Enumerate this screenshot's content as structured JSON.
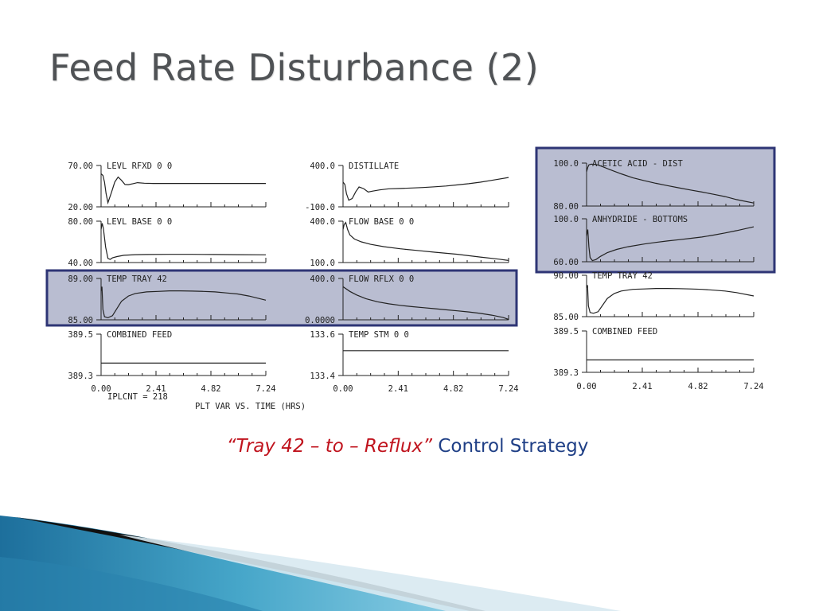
{
  "slide": {
    "title": "Feed Rate Disturbance (2)",
    "caption_emph": "“Tray 42 – to – Reflux”",
    "caption_rest": " Control Strategy"
  },
  "colors": {
    "highlight_fill": "#b9bdd1",
    "highlight_border": "#2e3575",
    "curve": "#222222",
    "title": "#4f5255",
    "caption_blue": "#1f3f86",
    "caption_red": "#c0131d"
  },
  "chart_data": [
    {
      "type": "line",
      "group": "left",
      "x_ticks": [
        "0.00",
        "2.41",
        "4.82",
        "7.24"
      ],
      "xlim": [
        0,
        7.24
      ],
      "footer_left": "IPLCNT =  218",
      "xlabel": "PLT VAR VS. TIME (HRS)",
      "panels": [
        {
          "id": "l1",
          "label": "LEVL RFXD   0   0",
          "ymax_label": "70.00",
          "ymin_label": "20.00",
          "ylim": [
            20,
            70
          ],
          "highlighted": false,
          "x": [
            0,
            0.08,
            0.15,
            0.22,
            0.3,
            0.45,
            0.6,
            0.75,
            0.9,
            1.05,
            1.2,
            1.4,
            1.6,
            1.9,
            2.3,
            3,
            4,
            5,
            6,
            7.24
          ],
          "y": [
            60,
            58,
            50,
            36,
            25,
            37,
            50,
            56,
            52,
            47,
            46.8,
            48,
            49.2,
            48.6,
            48.3,
            48.3,
            48.3,
            48.3,
            48.3,
            48.3
          ]
        },
        {
          "id": "l2",
          "label": "LEVL BASE   0   0",
          "ymax_label": "80.00",
          "ymin_label": "40.00",
          "ylim": [
            40,
            80
          ],
          "highlighted": false,
          "x": [
            0,
            0.05,
            0.1,
            0.15,
            0.2,
            0.3,
            0.4,
            0.5,
            0.7,
            1,
            1.5,
            2,
            3,
            4,
            5,
            6,
            7.24
          ],
          "y": [
            72,
            78,
            73,
            64,
            55,
            44,
            43,
            44.5,
            45.8,
            47,
            47.6,
            47.8,
            47.9,
            47.9,
            47.8,
            47.6,
            47.5
          ]
        },
        {
          "id": "l3",
          "label": "TEMP TRAY 42",
          "ymax_label": "89.00",
          "ymin_label": "85.00",
          "ylim": [
            85,
            89
          ],
          "highlighted": true,
          "x": [
            0,
            0.04,
            0.08,
            0.15,
            0.3,
            0.5,
            0.7,
            0.9,
            1.2,
            1.5,
            2,
            2.5,
            3,
            3.5,
            4,
            4.5,
            5,
            5.5,
            6,
            6.5,
            7.24
          ],
          "y": [
            87.8,
            88.2,
            86,
            85.3,
            85.2,
            85.4,
            86.1,
            86.8,
            87.3,
            87.55,
            87.7,
            87.75,
            87.8,
            87.8,
            87.78,
            87.75,
            87.7,
            87.6,
            87.5,
            87.3,
            86.9
          ]
        },
        {
          "id": "l4",
          "label": "COMBINED FEED",
          "ymax_label": "389.5",
          "ymin_label": "389.3",
          "ylim": [
            389.3,
            389.5
          ],
          "highlighted": false,
          "x": [
            0,
            7.24
          ],
          "y": [
            389.36,
            389.36
          ]
        }
      ]
    },
    {
      "type": "line",
      "group": "middle",
      "x_ticks": [
        "0.00",
        "2.41",
        "4.82",
        "7.24"
      ],
      "xlim": [
        0,
        7.24
      ],
      "panels": [
        {
          "id": "m1",
          "label": "DISTILLATE",
          "ymax_label": "400.0",
          "ymin_label": "-100.0",
          "ylim": [
            -100,
            400
          ],
          "highlighted": false,
          "x": [
            0,
            0.08,
            0.15,
            0.25,
            0.4,
            0.55,
            0.7,
            0.9,
            1.1,
            1.3,
            1.6,
            2,
            2.5,
            3,
            3.5,
            4,
            4.5,
            5,
            5.5,
            6,
            6.5,
            7.24
          ],
          "y": [
            200,
            170,
            60,
            -20,
            0,
            80,
            140,
            120,
            80,
            90,
            105,
            118,
            122,
            128,
            134,
            142,
            152,
            165,
            180,
            198,
            220,
            255
          ]
        },
        {
          "id": "m2",
          "label": "FLOW BASE   0   0",
          "ymax_label": "400.0",
          "ymin_label": "100.0",
          "ylim": [
            100,
            400
          ],
          "highlighted": false,
          "x": [
            0,
            0.05,
            0.12,
            0.2,
            0.3,
            0.5,
            0.8,
            1.2,
            1.8,
            2.5,
            3.2,
            4,
            5,
            6,
            6.8,
            7.24
          ],
          "y": [
            340,
            375,
            390,
            340,
            300,
            270,
            250,
            232,
            215,
            200,
            188,
            175,
            160,
            140,
            125,
            115
          ]
        },
        {
          "id": "m3",
          "label": "FLOW RFLX   0   0",
          "ymax_label": "400.0",
          "ymin_label": "0.0000",
          "ylim": [
            0,
            400
          ],
          "highlighted": true,
          "x": [
            0,
            0.3,
            0.6,
            1,
            1.5,
            2,
            2.5,
            3,
            3.5,
            4,
            4.5,
            5,
            5.5,
            6,
            6.5,
            7,
            7.24
          ],
          "y": [
            320,
            275,
            240,
            205,
            175,
            155,
            140,
            128,
            118,
            108,
            97,
            87,
            76,
            62,
            45,
            22,
            5
          ]
        },
        {
          "id": "m4",
          "label": "TEMP STM    0   0",
          "ymax_label": "133.6",
          "ymin_label": "133.4",
          "ylim": [
            133.4,
            133.6
          ],
          "highlighted": false,
          "x": [
            0,
            7.24
          ],
          "y": [
            133.52,
            133.52
          ]
        }
      ]
    },
    {
      "type": "line",
      "group": "right",
      "x_ticks": [
        "0.00",
        "2.41",
        "4.82",
        "7.24"
      ],
      "xlim": [
        0,
        7.24
      ],
      "panels": [
        {
          "id": "r1",
          "label": "ACETIC ACID - DIST",
          "ymax_label": "100.0",
          "ymin_label": "80.00",
          "ylim": [
            80,
            100
          ],
          "highlighted": true,
          "x": [
            0,
            0.05,
            0.1,
            0.2,
            0.35,
            0.5,
            0.7,
            1,
            1.5,
            2,
            2.5,
            3,
            3.5,
            4,
            4.5,
            5,
            5.5,
            6,
            6.5,
            7.24
          ],
          "y": [
            96,
            98,
            99.2,
            99.5,
            99.4,
            99.1,
            98.3,
            97,
            95,
            93.2,
            91.8,
            90.6,
            89.5,
            88.5,
            87.5,
            86.5,
            85.5,
            84.4,
            83,
            81.4
          ]
        },
        {
          "id": "r2",
          "label": "ANHYDRIDE - BOTTOMS",
          "ymax_label": "100.0",
          "ymin_label": "60.00",
          "ylim": [
            60,
            100
          ],
          "highlighted": true,
          "x": [
            0,
            0.05,
            0.1,
            0.15,
            0.25,
            0.4,
            0.6,
            0.9,
            1.3,
            1.8,
            2.5,
            3,
            3.5,
            4,
            4.5,
            5,
            5.5,
            6,
            6.5,
            7.24
          ],
          "y": [
            84,
            90,
            74,
            64,
            61,
            62,
            65,
            68.5,
            71.5,
            74,
            76.5,
            78,
            79.3,
            80.5,
            81.8,
            83,
            84.8,
            86.8,
            89,
            92.5
          ]
        },
        {
          "id": "r3",
          "label": "TEMP TRAY 42",
          "ymax_label": "90.00",
          "ymin_label": "85.00",
          "ylim": [
            85,
            90
          ],
          "highlighted": false,
          "x": [
            0,
            0.04,
            0.08,
            0.15,
            0.3,
            0.5,
            0.7,
            0.9,
            1.2,
            1.5,
            2,
            2.5,
            3,
            3.5,
            4,
            4.5,
            5,
            5.5,
            6,
            6.5,
            7.24
          ],
          "y": [
            88.5,
            88.8,
            86.3,
            85.5,
            85.4,
            85.6,
            86.4,
            87.2,
            87.8,
            88.1,
            88.3,
            88.35,
            88.4,
            88.4,
            88.38,
            88.35,
            88.3,
            88.2,
            88.1,
            87.9,
            87.5
          ]
        },
        {
          "id": "r4",
          "label": "COMBINED FEED",
          "ymax_label": "389.5",
          "ymin_label": "389.3",
          "ylim": [
            389.3,
            389.5
          ],
          "highlighted": false,
          "x": [
            0,
            7.24
          ],
          "y": [
            389.36,
            389.36
          ]
        }
      ]
    }
  ]
}
